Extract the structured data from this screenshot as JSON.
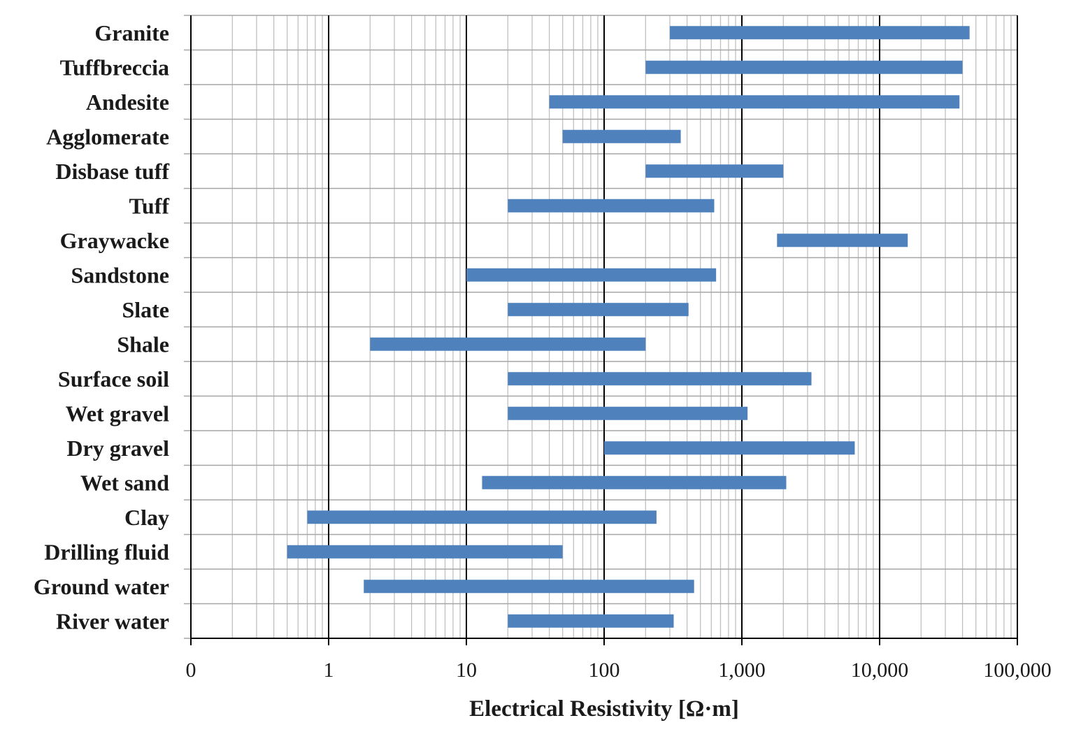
{
  "chart_data": {
    "type": "bar",
    "orientation": "horizontal-range",
    "xscale": "log",
    "xlim": [
      0.1,
      100000
    ],
    "xlabel": "Electrical Resistivity [Ω·m]",
    "xtick_values": [
      0.1,
      1,
      10,
      100,
      1000,
      10000,
      100000
    ],
    "xtick_labels": [
      "0",
      "1",
      "10",
      "100",
      "1,000",
      "10,000",
      "100,000"
    ],
    "grid": true,
    "bar_color": "#4f81bd",
    "categories": [
      "Granite",
      "Tuffbreccia",
      "Andesite",
      "Agglomerate",
      "Disbase tuff",
      "Tuff",
      "Graywacke",
      "Sandstone",
      "Slate",
      "Shale",
      "Surface soil",
      "Wet gravel",
      "Dry gravel",
      "Wet sand",
      "Clay",
      "Drilling fluid",
      "Ground water",
      "River water"
    ],
    "ranges": [
      [
        300,
        45000
      ],
      [
        200,
        40000
      ],
      [
        40,
        38000
      ],
      [
        50,
        360
      ],
      [
        200,
        2000
      ],
      [
        20,
        630
      ],
      [
        1800,
        16000
      ],
      [
        10,
        650
      ],
      [
        20,
        410
      ],
      [
        2,
        200
      ],
      [
        20,
        3200
      ],
      [
        20,
        1100
      ],
      [
        100,
        6600
      ],
      [
        13,
        2100
      ],
      [
        0.7,
        240
      ],
      [
        0.5,
        50
      ],
      [
        1.8,
        450
      ],
      [
        20,
        320
      ]
    ]
  }
}
